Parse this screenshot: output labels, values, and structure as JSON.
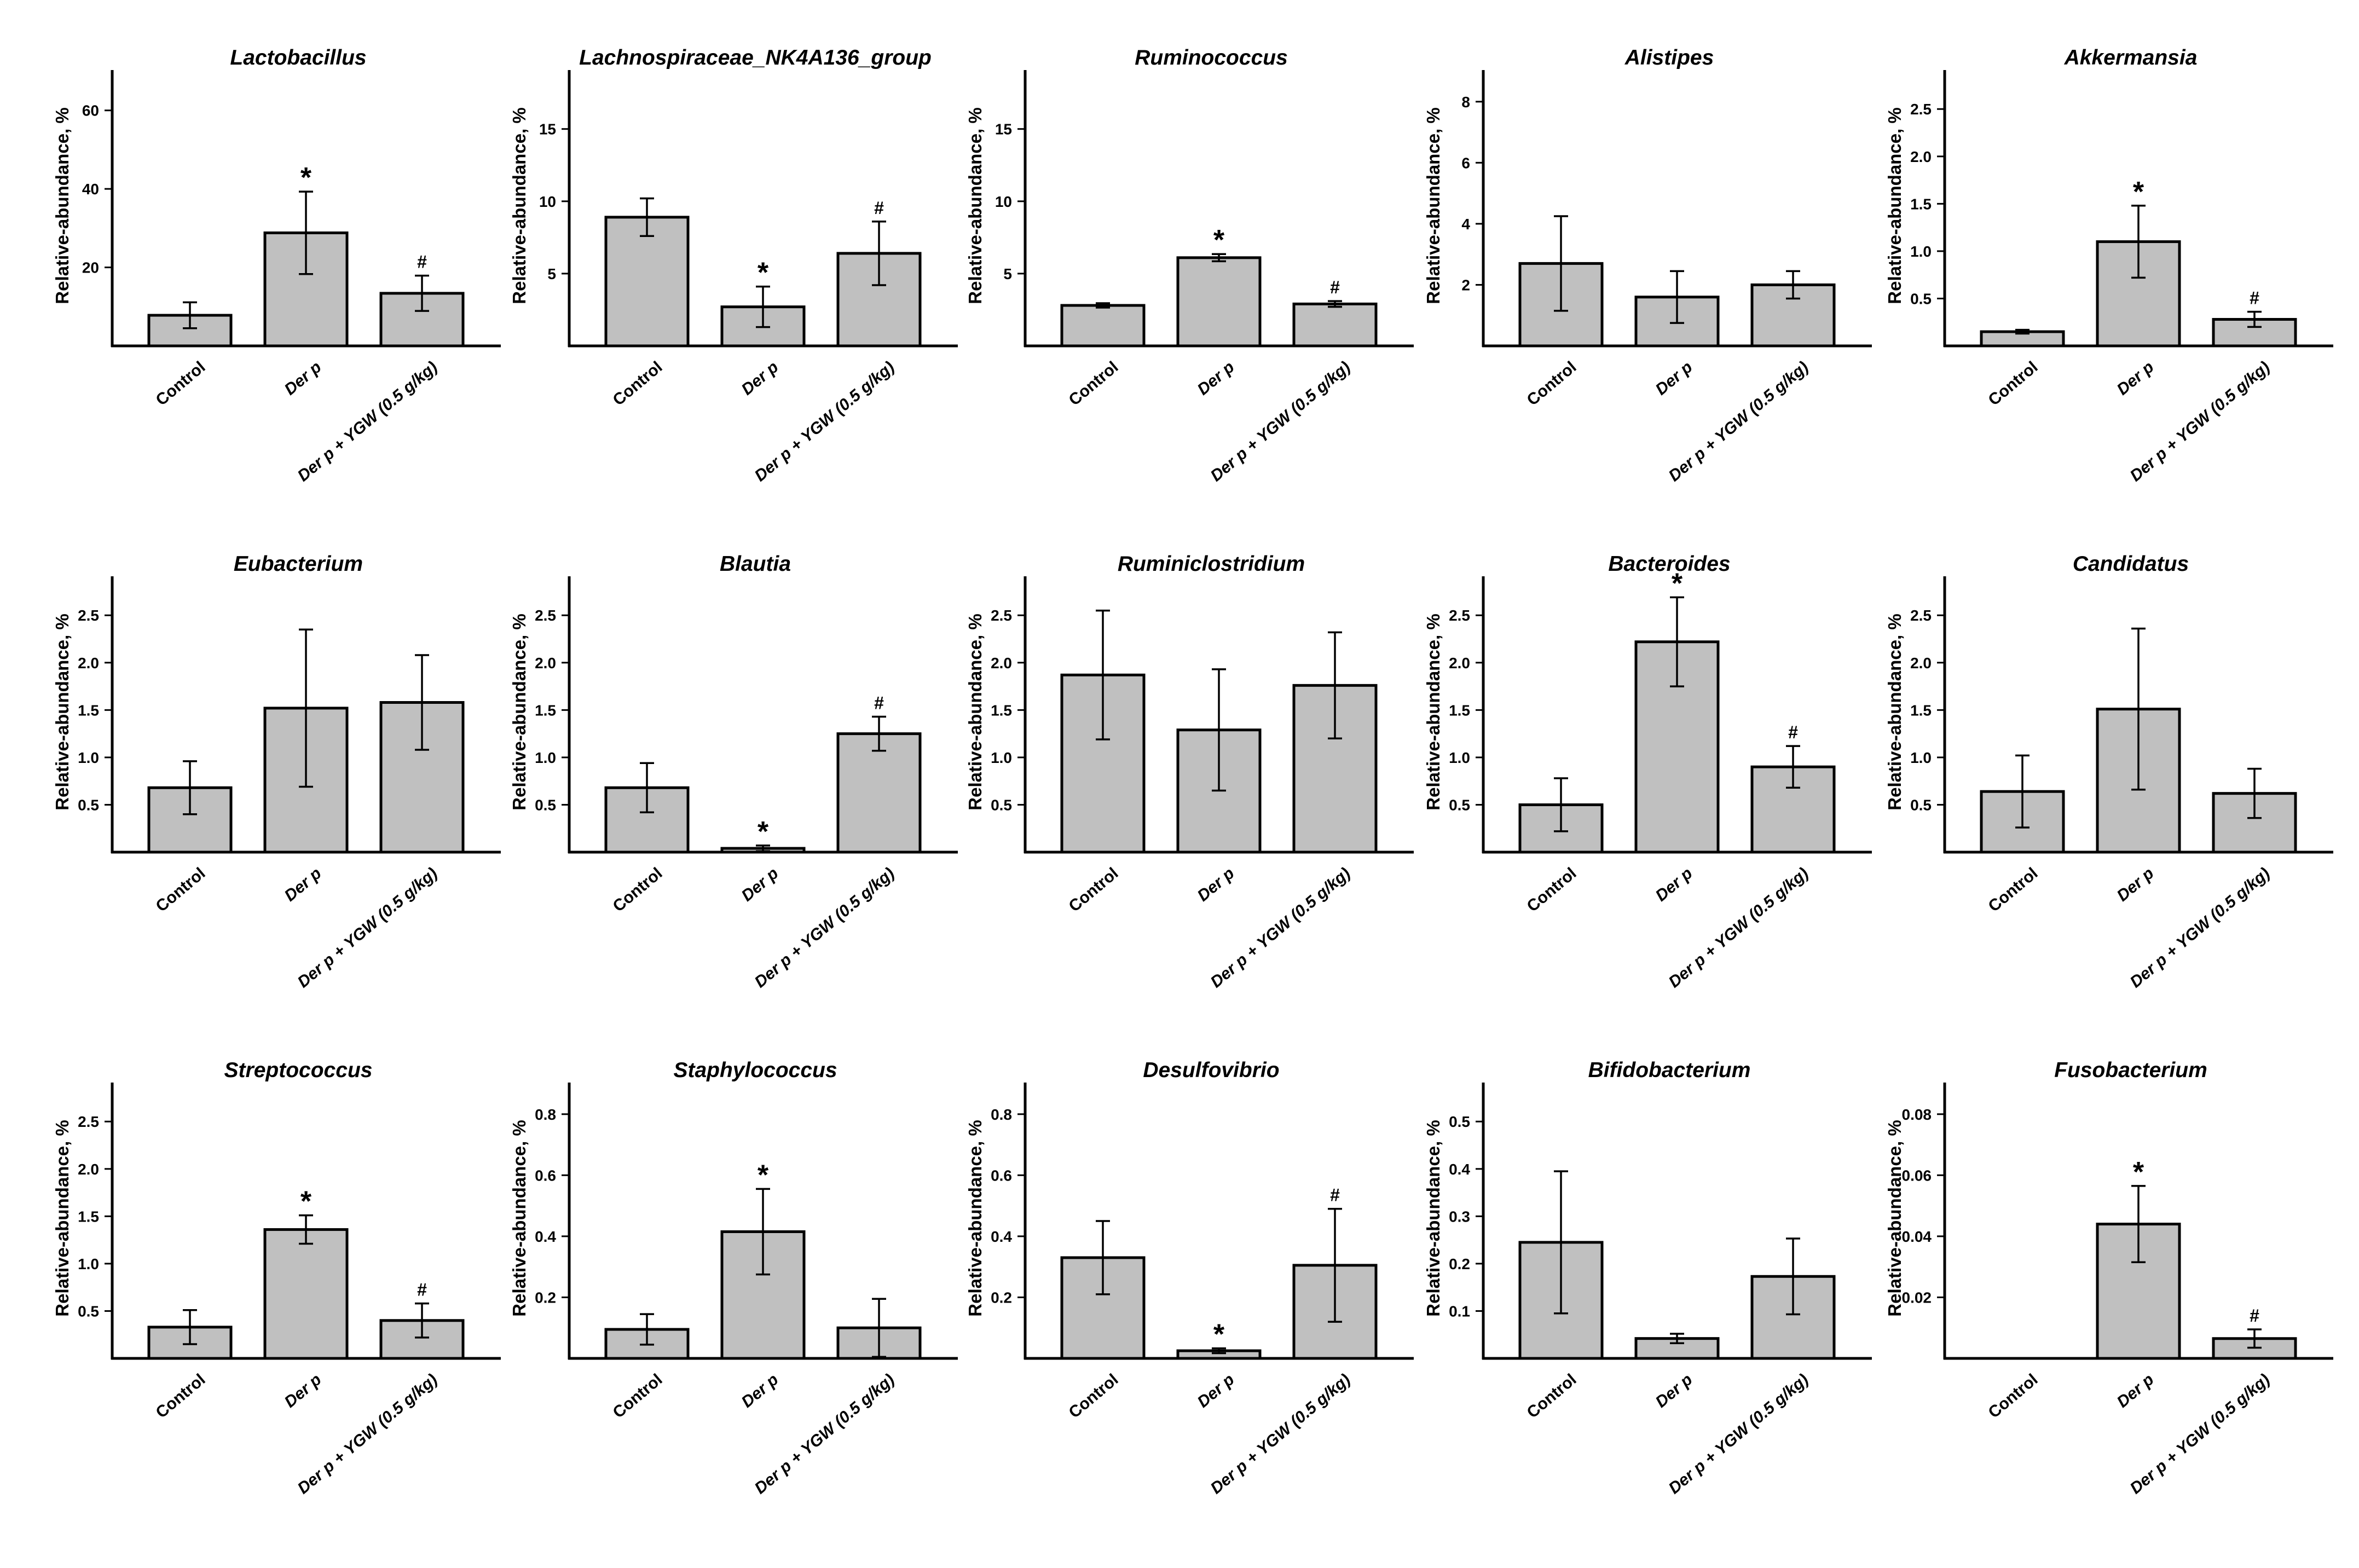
{
  "colors": {
    "bar_fill": "#c0c0c0",
    "stroke": "#000000",
    "background": "#ffffff"
  },
  "chart_data": [
    {
      "type": "bar",
      "title": "Lactobacillus",
      "ylabel": "Relative-abundance, %",
      "xlabel": "",
      "categories": [
        "Control",
        "Der p",
        "Der p + YGW (0.5 g/kg)"
      ],
      "values": [
        7.8,
        28.8,
        13.4
      ],
      "errors": [
        3.3,
        10.5,
        4.5
      ],
      "marks": [
        "",
        "*",
        "#"
      ],
      "ylim": [
        0,
        70
      ],
      "yticks": [
        20,
        40,
        60
      ],
      "tick_labels": [
        "20",
        "40",
        "60"
      ]
    },
    {
      "type": "bar",
      "title": "Lachnospiraceae_NK4A136_group",
      "ylabel": "Relative-abundance, %",
      "xlabel": "",
      "categories": [
        "Control",
        "Der p",
        "Der p + YGW (0.5 g/kg)"
      ],
      "values": [
        8.9,
        2.7,
        6.4
      ],
      "errors": [
        1.3,
        1.4,
        2.2
      ],
      "marks": [
        "",
        "*",
        "#"
      ],
      "ylim": [
        0,
        19
      ],
      "yticks": [
        5,
        10,
        15
      ],
      "tick_labels": [
        "5",
        "10",
        "15"
      ]
    },
    {
      "type": "bar",
      "title": "Ruminococcus",
      "ylabel": "Relative-abundance, %",
      "xlabel": "",
      "categories": [
        "Control",
        "Der p",
        "Der p + YGW (0.5 g/kg)"
      ],
      "values": [
        2.8,
        6.1,
        2.9
      ],
      "errors": [
        0.15,
        0.25,
        0.2
      ],
      "marks": [
        "",
        "*",
        "#"
      ],
      "ylim": [
        0,
        19
      ],
      "yticks": [
        5,
        10,
        15
      ],
      "tick_labels": [
        "5",
        "10",
        "15"
      ]
    },
    {
      "type": "bar",
      "title": "Alistipes",
      "ylabel": "Relative-abundance, %",
      "xlabel": "",
      "categories": [
        "Control",
        "Der p",
        "Der p + YGW (0.5 g/kg)"
      ],
      "values": [
        2.7,
        1.6,
        2.0
      ],
      "errors": [
        1.55,
        0.85,
        0.45
      ],
      "marks": [
        "",
        "",
        ""
      ],
      "ylim": [
        0,
        9
      ],
      "yticks": [
        2,
        4,
        6,
        8
      ],
      "tick_labels": [
        "2",
        "4",
        "6",
        "8"
      ]
    },
    {
      "type": "bar",
      "title": "Akkermansia",
      "ylabel": "Relative-abundance, %",
      "xlabel": "",
      "categories": [
        "Control",
        "Der p",
        "Der p + YGW (0.5 g/kg)"
      ],
      "values": [
        0.15,
        1.1,
        0.28
      ],
      "errors": [
        0.02,
        0.38,
        0.08
      ],
      "marks": [
        "",
        "*",
        "#"
      ],
      "ylim": [
        0,
        2.9
      ],
      "yticks": [
        0.5,
        1.0,
        1.5,
        2.0,
        2.5
      ],
      "tick_labels": [
        "0.5",
        "1.0",
        "1.5",
        "2.0",
        "2.5"
      ]
    },
    {
      "type": "bar",
      "title": "Eubacterium",
      "ylabel": "Relative-abundance, %",
      "xlabel": "",
      "categories": [
        "Control",
        "Der p",
        "Der p + YGW (0.5 g/kg)"
      ],
      "values": [
        0.68,
        1.52,
        1.58
      ],
      "errors": [
        0.28,
        0.83,
        0.5
      ],
      "marks": [
        "",
        "",
        ""
      ],
      "ylim": [
        0,
        2.9
      ],
      "yticks": [
        0.5,
        1.0,
        1.5,
        2.0,
        2.5
      ],
      "tick_labels": [
        "0.5",
        "1.0",
        "1.5",
        "2.0",
        "2.5"
      ]
    },
    {
      "type": "bar",
      "title": "Blautia",
      "ylabel": "Relative-abundance, %",
      "xlabel": "",
      "categories": [
        "Control",
        "Der p",
        "Der p + YGW (0.5 g/kg)"
      ],
      "values": [
        0.68,
        0.04,
        1.25
      ],
      "errors": [
        0.26,
        0.03,
        0.18
      ],
      "marks": [
        "",
        "*",
        "#"
      ],
      "ylim": [
        0,
        2.9
      ],
      "yticks": [
        0.5,
        1.0,
        1.5,
        2.0,
        2.5
      ],
      "tick_labels": [
        "0.5",
        "1.0",
        "1.5",
        "2.0",
        "2.5"
      ]
    },
    {
      "type": "bar",
      "title": "Ruminiclostridium",
      "ylabel": "Relative-abundance, %",
      "xlabel": "",
      "categories": [
        "Control",
        "Der p",
        "Der p + YGW (0.5 g/kg)"
      ],
      "values": [
        1.87,
        1.29,
        1.76
      ],
      "errors": [
        0.68,
        0.64,
        0.56
      ],
      "marks": [
        "",
        "",
        ""
      ],
      "ylim": [
        0,
        2.9
      ],
      "yticks": [
        0.5,
        1.0,
        1.5,
        2.0,
        2.5
      ],
      "tick_labels": [
        "0.5",
        "1.0",
        "1.5",
        "2.0",
        "2.5"
      ]
    },
    {
      "type": "bar",
      "title": "Bacteroides",
      "ylabel": "Relative-abundance, %",
      "xlabel": "",
      "categories": [
        "Control",
        "Der p",
        "Der p + YGW (0.5 g/kg)"
      ],
      "values": [
        0.5,
        2.22,
        0.9
      ],
      "errors": [
        0.28,
        0.47,
        0.22
      ],
      "marks": [
        "",
        "*",
        "#"
      ],
      "ylim": [
        0,
        2.9
      ],
      "yticks": [
        0.5,
        1.0,
        1.5,
        2.0,
        2.5
      ],
      "tick_labels": [
        "0.5",
        "1.0",
        "1.5",
        "2.0",
        "2.5"
      ]
    },
    {
      "type": "bar",
      "title": "Candidatus",
      "ylabel": "Relative-abundance, %",
      "xlabel": "",
      "categories": [
        "Control",
        "Der p",
        "Der p + YGW (0.5 g/kg)"
      ],
      "values": [
        0.64,
        1.51,
        0.62
      ],
      "errors": [
        0.38,
        0.85,
        0.26
      ],
      "marks": [
        "",
        "",
        ""
      ],
      "ylim": [
        0,
        2.9
      ],
      "yticks": [
        0.5,
        1.0,
        1.5,
        2.0,
        2.5
      ],
      "tick_labels": [
        "0.5",
        "1.0",
        "1.5",
        "2.0",
        "2.5"
      ]
    },
    {
      "type": "bar",
      "title": "Streptococcus",
      "ylabel": "Relative-abundance, %",
      "xlabel": "",
      "categories": [
        "Control",
        "Der p",
        "Der p + YGW (0.5 g/kg)"
      ],
      "values": [
        0.33,
        1.36,
        0.4
      ],
      "errors": [
        0.18,
        0.15,
        0.18
      ],
      "marks": [
        "",
        "*",
        "#"
      ],
      "ylim": [
        0,
        2.9
      ],
      "yticks": [
        0.5,
        1.0,
        1.5,
        2.0,
        2.5
      ],
      "tick_labels": [
        "0.5",
        "1.0",
        "1.5",
        "2.0",
        "2.5"
      ]
    },
    {
      "type": "bar",
      "title": "Staphylococcus",
      "ylabel": "Relative-abundance, %",
      "xlabel": "",
      "categories": [
        "Control",
        "Der p",
        "Der p + YGW (0.5 g/kg)"
      ],
      "values": [
        0.095,
        0.415,
        0.1
      ],
      "errors": [
        0.05,
        0.14,
        0.095
      ],
      "marks": [
        "",
        "*",
        ""
      ],
      "ylim": [
        0,
        0.9
      ],
      "yticks": [
        0.2,
        0.4,
        0.6,
        0.8
      ],
      "tick_labels": [
        "0.2",
        "0.4",
        "0.6",
        "0.8"
      ]
    },
    {
      "type": "bar",
      "title": "Desulfovibrio",
      "ylabel": "Relative-abundance, %",
      "xlabel": "",
      "categories": [
        "Control",
        "Der p",
        "Der p + YGW (0.5 g/kg)"
      ],
      "values": [
        0.33,
        0.025,
        0.305
      ],
      "errors": [
        0.12,
        0.008,
        0.185
      ],
      "marks": [
        "",
        "*",
        "#"
      ],
      "ylim": [
        0,
        0.9
      ],
      "yticks": [
        0.2,
        0.4,
        0.6,
        0.8
      ],
      "tick_labels": [
        "0.2",
        "0.4",
        "0.6",
        "0.8"
      ]
    },
    {
      "type": "bar",
      "title": "Bifidobacterium",
      "ylabel": "Relative-abundance, %",
      "xlabel": "",
      "categories": [
        "Control",
        "Der p",
        "Der p + YGW (0.5 g/kg)"
      ],
      "values": [
        0.245,
        0.042,
        0.173
      ],
      "errors": [
        0.15,
        0.01,
        0.08
      ],
      "marks": [
        "",
        "",
        ""
      ],
      "ylim": [
        0,
        0.58
      ],
      "yticks": [
        0.1,
        0.2,
        0.3,
        0.4,
        0.5
      ],
      "tick_labels": [
        "0.1",
        "0.2",
        "0.3",
        "0.4",
        "0.5"
      ]
    },
    {
      "type": "bar",
      "title": "Fusobacterium",
      "ylabel": "Relative-abundance, %",
      "xlabel": "",
      "categories": [
        "Control",
        "Der p",
        "Der p + YGW (0.5 g/kg)"
      ],
      "values": [
        0,
        0.044,
        0.0065
      ],
      "errors": [
        0,
        0.0125,
        0.003
      ],
      "marks": [
        "",
        "*",
        "#"
      ],
      "ylim": [
        0,
        0.09
      ],
      "yticks": [
        0.02,
        0.04,
        0.06,
        0.08
      ],
      "tick_labels": [
        "0.02",
        "0.04",
        "0.06",
        "0.08"
      ]
    }
  ]
}
